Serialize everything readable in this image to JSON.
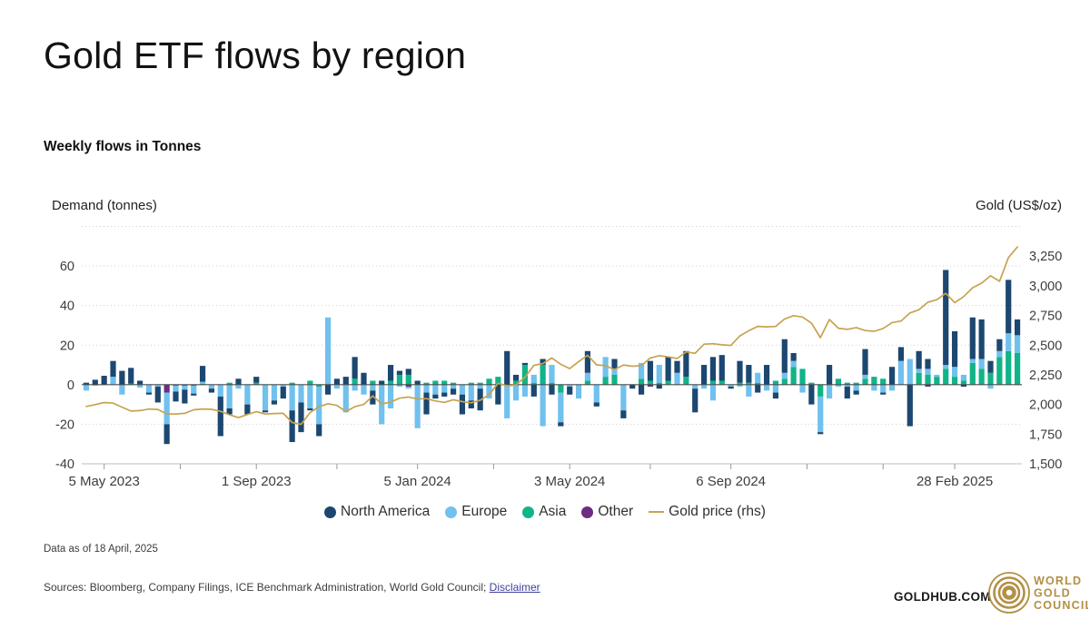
{
  "header": {
    "title": "Gold ETF flows by region",
    "subtitle": "Weekly flows in Tonnes"
  },
  "legend": {
    "items": [
      {
        "label": "North America",
        "color": "#1c4770",
        "marker": "circle"
      },
      {
        "label": "Europe",
        "color": "#70c1ee",
        "marker": "circle"
      },
      {
        "label": "Asia",
        "color": "#10b487",
        "marker": "circle"
      },
      {
        "label": "Other",
        "color": "#6c2d82",
        "marker": "circle"
      },
      {
        "label": "Gold price (rhs)",
        "color": "#c7a350",
        "marker": "line"
      }
    ]
  },
  "footer": {
    "data_as_of": "Data as of 18 April, 2025",
    "sources_prefix": "Sources: Bloomberg, Company Filings, ICE Benchmark Administration, World Gold Council; ",
    "disclaimer_label": "Disclaimer",
    "goldhub": "GOLDHUB.COM",
    "logo_lines": [
      "WORLD",
      "GOLD",
      "COUNCIL"
    ],
    "logo_color": "#b29044"
  },
  "chart_data": {
    "type": "bar",
    "title": "Gold ETF flows by region",
    "subtitle": "Weekly flows in Tonnes",
    "grid": true,
    "legend_position": "bottom",
    "stack_order": [
      "Other",
      "Asia",
      "Europe",
      "North America"
    ],
    "left_axis": {
      "title": "Demand (tonnes)",
      "min": -40,
      "max": 80,
      "tick_values": [
        60,
        40,
        20,
        0,
        -20,
        -40
      ]
    },
    "right_axis": {
      "title": "Gold (US$/oz)",
      "min": 1500,
      "max": 3500,
      "tick_labels": [
        "3,250",
        "3,000",
        "2,750",
        "2,500",
        "2,250",
        "2,000",
        "1,750",
        "1,500"
      ],
      "tick_values": [
        3250,
        3000,
        2750,
        2500,
        2250,
        2000,
        1750,
        1500
      ]
    },
    "x_axis": {
      "n_points": 105,
      "start_label": "5 May 2023",
      "labeled_ticks": [
        {
          "index": 2,
          "label": "5 May 2023"
        },
        {
          "index": 19,
          "label": "1 Sep 2023"
        },
        {
          "index": 37,
          "label": "5 Jan 2024"
        },
        {
          "index": 54,
          "label": "3 May 2024"
        },
        {
          "index": 72,
          "label": "6 Sep 2024"
        },
        {
          "index": 97,
          "label": "28 Feb 2025"
        }
      ],
      "minor_tick_indices": [
        10.5,
        28,
        45.5,
        63,
        80.5,
        89
      ]
    },
    "series": [
      {
        "name": "North America",
        "color": "#1c4770",
        "values": [
          1,
          2.5,
          4.5,
          8,
          7,
          8,
          2,
          -1,
          -8,
          -10,
          -5,
          -7,
          -1,
          8,
          -2,
          -20,
          -3,
          3,
          -5,
          3,
          -1,
          -2,
          -6,
          -16,
          -15,
          -1,
          -6,
          -5,
          3,
          4,
          11,
          6,
          -7,
          2,
          8,
          2,
          3,
          2,
          -11,
          -2,
          -2,
          -3,
          -10,
          -4,
          -11,
          0,
          -10,
          17,
          3,
          1,
          -6,
          3,
          -5,
          -2,
          -4,
          0,
          11,
          -2,
          0,
          5,
          -4,
          -2,
          -5,
          10,
          -2,
          12,
          6,
          13,
          -12,
          10,
          12,
          13,
          -1,
          11,
          9,
          -4,
          10,
          -3,
          17,
          4,
          0,
          -10,
          -1,
          10,
          0,
          -6,
          -2,
          13,
          0,
          -1,
          9,
          7,
          -21,
          9,
          5,
          0,
          48,
          18,
          -1,
          21,
          20,
          6,
          6,
          27,
          8
        ]
      },
      {
        "name": "Europe",
        "color": "#70c1ee",
        "values": [
          -3,
          -0.5,
          0,
          4,
          -5,
          0,
          -1.5,
          -4,
          -1,
          -16,
          -3,
          -2,
          -4,
          1,
          -2,
          -6,
          -12,
          -2,
          -10,
          0,
          -13,
          -8,
          -1,
          -13,
          -9,
          -12,
          -19,
          34,
          -2,
          -14,
          -3,
          -5,
          -3,
          -20,
          -12,
          -1,
          -1,
          -22,
          -4,
          -5,
          -4,
          -2,
          -5,
          -8,
          -2,
          -7,
          0,
          -17,
          -8,
          -6,
          4,
          -21,
          9,
          -15,
          -1,
          -7,
          4,
          -9,
          10,
          3,
          -13,
          0,
          8,
          0,
          9,
          0,
          6,
          0,
          -2,
          -2,
          -8,
          0,
          -1,
          -1,
          -6,
          5,
          -3,
          -4,
          3,
          3,
          -4,
          0,
          -18,
          -7,
          -1,
          -1,
          -3,
          2,
          -3,
          -4,
          -3,
          12,
          13,
          2,
          3,
          1,
          2,
          5,
          3,
          2,
          5,
          -2,
          3,
          9,
          9
        ]
      },
      {
        "name": "Asia",
        "color": "#10b487",
        "values": [
          0,
          0,
          0,
          0,
          0,
          0.5,
          0,
          0,
          0,
          0,
          0,
          0,
          0,
          0.5,
          0,
          0,
          1,
          0,
          0,
          1,
          0,
          0,
          0,
          1,
          0,
          2,
          -1,
          0,
          0,
          0,
          3,
          0,
          2,
          0,
          2,
          5,
          5,
          0,
          1,
          2,
          2,
          1,
          0,
          1,
          1,
          3,
          4,
          0,
          2,
          10,
          1,
          10,
          1,
          -4,
          0,
          0,
          2,
          0,
          4,
          5,
          0,
          0,
          3,
          2,
          1,
          2,
          0,
          4,
          0,
          0,
          2,
          2,
          0,
          1,
          1,
          1,
          0,
          2,
          3,
          9,
          8,
          1,
          -6,
          0,
          3,
          1,
          1,
          3,
          4,
          3,
          0,
          0,
          0,
          6,
          5,
          4,
          8,
          4,
          2,
          11,
          8,
          6,
          14,
          17,
          16
        ]
      },
      {
        "name": "Other",
        "color": "#6c2d82",
        "values": [
          0,
          0,
          0,
          0,
          0,
          0,
          0,
          0,
          0,
          -4,
          -0.5,
          -0.5,
          -0.5,
          0,
          0,
          0,
          0,
          0,
          0,
          0,
          0,
          0,
          0,
          0,
          0,
          0,
          0,
          0,
          0,
          0,
          0,
          0,
          0,
          0,
          0,
          0,
          -1,
          0,
          0,
          0,
          0,
          0,
          0,
          0,
          0,
          0,
          0,
          0,
          0,
          0,
          0,
          0,
          0,
          0,
          0,
          0,
          0,
          0,
          0,
          0,
          0,
          0,
          0,
          -1,
          0,
          0,
          0,
          0,
          0,
          0,
          0,
          0,
          0,
          0,
          0,
          0,
          0,
          0,
          0,
          0,
          0,
          0,
          0,
          0,
          0,
          0,
          0,
          0,
          0,
          0,
          0,
          0,
          0,
          0,
          -1,
          0,
          0,
          0,
          0,
          0,
          0,
          0,
          0,
          0,
          0
        ]
      }
    ],
    "line_series": {
      "name": "Gold price (rhs)",
      "color": "#c7a350",
      "axis": "right",
      "values": [
        1983,
        1999,
        2016,
        2011,
        1977,
        1944,
        1948,
        1961,
        1958,
        1921,
        1919,
        1925,
        1955,
        1962,
        1959,
        1942,
        1913,
        1889,
        1915,
        1940,
        1919,
        1924,
        1925,
        1848,
        1833,
        1932,
        1981,
        2006,
        1992,
        1940,
        1981,
        2000,
        2072,
        2005,
        2020,
        2053,
        2063,
        2046,
        2049,
        2029,
        2018,
        2040,
        2024,
        2014,
        2035,
        2083,
        2179,
        2156,
        2165,
        2230,
        2330,
        2344,
        2392,
        2338,
        2302,
        2361,
        2415,
        2334,
        2327,
        2293,
        2333,
        2322,
        2327,
        2392,
        2411,
        2401,
        2387,
        2443,
        2431,
        2508,
        2512,
        2503,
        2497,
        2578,
        2622,
        2658,
        2654,
        2657,
        2721,
        2748,
        2737,
        2685,
        2563,
        2716,
        2643,
        2633,
        2648,
        2623,
        2617,
        2640,
        2690,
        2703,
        2771,
        2798,
        2861,
        2883,
        2936,
        2858,
        2909,
        2984,
        3022,
        3085,
        3038,
        3238,
        3327
      ]
    },
    "styles": {
      "gridline_color": "#cfcfcf",
      "zero_line_color": "#4d4d4d",
      "axis_line_color": "#c9c9c9",
      "tick_color": "#999999",
      "label_color": "#3d3d3d"
    }
  }
}
